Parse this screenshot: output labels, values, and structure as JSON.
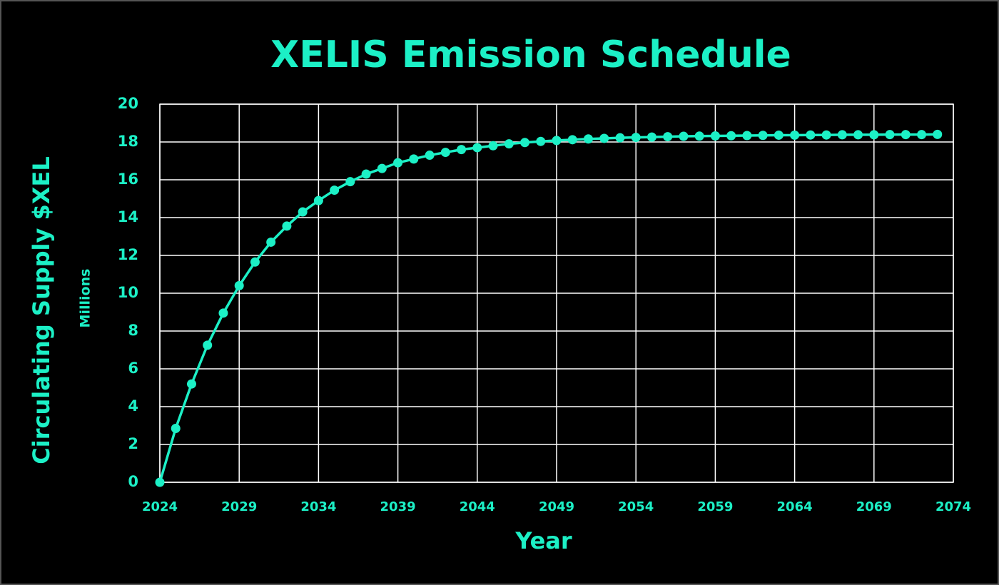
{
  "chart_data": {
    "type": "line",
    "title": "XELIS Emission Schedule",
    "x_label": "Year",
    "y_label": "Circulating Supply $XEL",
    "y_unit_label": "Millions",
    "color": "#1cf0c6",
    "grid": true,
    "x": [
      2024,
      2025,
      2026,
      2027,
      2028,
      2029,
      2030,
      2031,
      2032,
      2033,
      2034,
      2035,
      2036,
      2037,
      2038,
      2039,
      2040,
      2041,
      2042,
      2043,
      2044,
      2045,
      2046,
      2047,
      2048,
      2049,
      2050,
      2051,
      2052,
      2053,
      2054,
      2055,
      2056,
      2057,
      2058,
      2059,
      2060,
      2061,
      2062,
      2063,
      2064,
      2065,
      2066,
      2067,
      2068,
      2069,
      2070,
      2071,
      2072,
      2073
    ],
    "values": [
      0,
      2.85,
      5.2,
      7.25,
      8.95,
      10.4,
      11.65,
      12.7,
      13.55,
      14.3,
      14.9,
      15.45,
      15.9,
      16.3,
      16.6,
      16.9,
      17.1,
      17.3,
      17.45,
      17.6,
      17.7,
      17.8,
      17.9,
      17.97,
      18.03,
      18.08,
      18.12,
      18.16,
      18.19,
      18.22,
      18.24,
      18.26,
      18.28,
      18.3,
      18.31,
      18.32,
      18.33,
      18.34,
      18.35,
      18.36,
      18.36,
      18.37,
      18.37,
      18.38,
      18.38,
      18.38,
      18.39,
      18.39,
      18.39,
      18.4
    ],
    "xlim": [
      2024,
      2074
    ],
    "xticks": [
      2024,
      2029,
      2034,
      2039,
      2044,
      2049,
      2054,
      2059,
      2064,
      2069,
      2074
    ],
    "ylim": [
      0,
      20
    ],
    "yticks": [
      0,
      2,
      4,
      6,
      8,
      10,
      12,
      14,
      16,
      18,
      20
    ]
  }
}
